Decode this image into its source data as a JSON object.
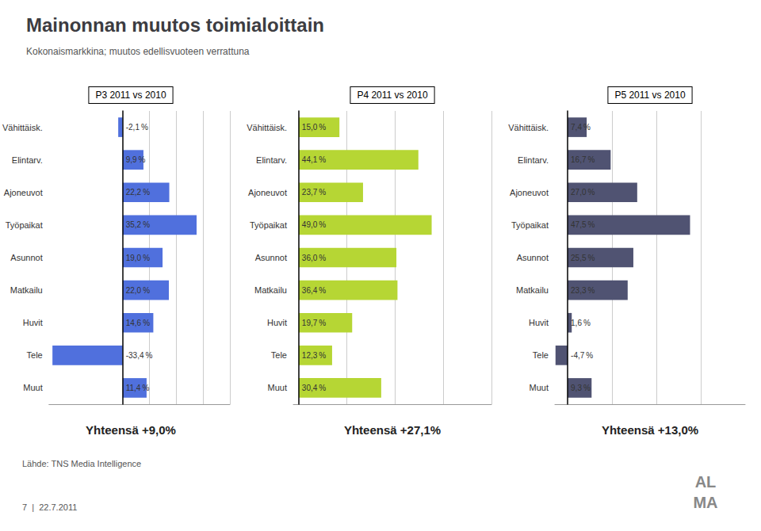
{
  "title": "Mainonnan muutos toimialoittain",
  "subtitle": "Kokonaismarkkina; muutos edellisvuoteen verrattuna",
  "annotations": [
    "Lähde: TNS Media Intelligence",
    "7  |  22.7.2011",
    "AL",
    "MA"
  ],
  "chart_data": [
    {
      "type": "bar",
      "orientation": "horizontal",
      "title": "P3 2011 vs 2010",
      "annotations": [
        "Yhteensä +9,0%"
      ],
      "categories": [
        "Vähittäisk.",
        "Elintarv.",
        "Ajoneuvot",
        "Työpaikat",
        "Asunnot",
        "Matkailu",
        "Huvit",
        "Tele",
        "Muut"
      ],
      "values": [
        -2.1,
        9.9,
        22.2,
        35.2,
        19.0,
        22.0,
        14.6,
        -33.4,
        11.4
      ],
      "value_labels": [
        "-2,1 %",
        "9,9 %",
        "22,2 %",
        "35,2 %",
        "19,0 %",
        "22,0 %",
        "14,6 %",
        "-33,4 %",
        "11,4 %"
      ],
      "data_labels": true,
      "xlim": [
        -35.07,
        51.04
      ],
      "xticks": [
        12.76,
        25.52,
        38.28,
        51.04
      ],
      "grid": true,
      "tick_labels": false
    },
    {
      "type": "bar",
      "orientation": "horizontal",
      "title": "P4 2011 vs 2010",
      "annotations": [
        "Yhteensä +27,1%"
      ],
      "categories": [
        "Vähittäisk.",
        "Elintarv.",
        "Ajoneuvot",
        "Työpaikat",
        "Asunnot",
        "Matkailu",
        "Huvit",
        "Tele",
        "Muut"
      ],
      "values": [
        15.0,
        44.1,
        23.7,
        49.0,
        36.0,
        36.4,
        19.7,
        12.3,
        30.4
      ],
      "value_labels": [
        "15,0 %",
        "44,1 %",
        "23,7 %",
        "49,0 %",
        "36,0 %",
        "36,4 %",
        "19,7 %",
        "12,3 %",
        "30,4 %"
      ],
      "data_labels": true,
      "xlim": [
        -2,
        71.05
      ],
      "xticks": [
        17.7625,
        35.525,
        53.2875,
        71.05
      ],
      "grid": true,
      "tick_labels": false
    },
    {
      "type": "bar",
      "orientation": "horizontal",
      "title": "P5 2011 vs 2010",
      "annotations": [
        "Yhteensä +13,0%"
      ],
      "categories": [
        "Vähittäisk.",
        "Elintarv.",
        "Ajoneuvot",
        "Työpaikat",
        "Asunnot",
        "Matkailu",
        "Huvit",
        "Tele",
        "Muut"
      ],
      "values": [
        7.4,
        16.7,
        27.0,
        47.5,
        25.5,
        23.3,
        1.6,
        -4.7,
        9.3
      ],
      "value_labels": [
        "7,4 %",
        "16,7 %",
        "27,0 %",
        "47,5 %",
        "25,5 %",
        "23,3 %",
        "1,6 %",
        "-4,7 %",
        "9,3 %"
      ],
      "data_labels": true,
      "xlim": [
        -4.935,
        68.875
      ],
      "xticks": [
        17.21875,
        34.4375,
        51.65625,
        68.875
      ],
      "grid": true,
      "tick_labels": false
    }
  ]
}
